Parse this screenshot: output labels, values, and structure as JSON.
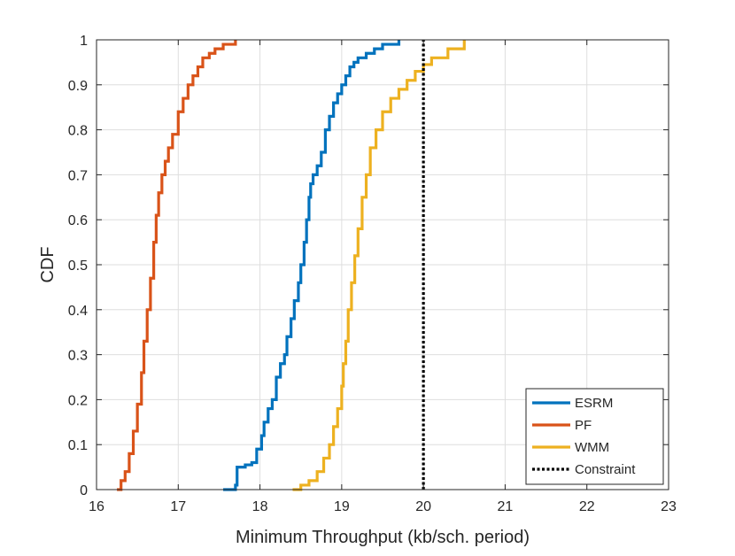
{
  "chart_data": {
    "type": "line",
    "title": "",
    "xlabel": "Minimum Throughput (kb/sch. period)",
    "ylabel": "CDF",
    "xlim": [
      16,
      23
    ],
    "ylim": [
      0,
      1
    ],
    "xticks": [
      16,
      17,
      18,
      19,
      20,
      21,
      22,
      23
    ],
    "yticks": [
      0,
      0.1,
      0.2,
      0.3,
      0.4,
      0.5,
      0.6,
      0.7,
      0.8,
      0.9,
      1
    ],
    "xtick_labels": [
      "16",
      "17",
      "18",
      "19",
      "20",
      "21",
      "22",
      "23"
    ],
    "ytick_labels": [
      "0",
      "0.1",
      "0.2",
      "0.3",
      "0.4",
      "0.5",
      "0.6",
      "0.7",
      "0.8",
      "0.9",
      "1"
    ],
    "grid": true,
    "legend_position": "bottom-right",
    "series": [
      {
        "name": "ESRM",
        "color": "#0072BD",
        "x": [
          17.55,
          17.7,
          17.72,
          17.82,
          17.9,
          17.96,
          18.02,
          18.05,
          18.1,
          18.15,
          18.2,
          18.25,
          18.3,
          18.33,
          18.38,
          18.42,
          18.47,
          18.5,
          18.54,
          18.57,
          18.6,
          18.62,
          18.65,
          18.7,
          18.75,
          18.8,
          18.85,
          18.9,
          18.95,
          19.0,
          19.05,
          19.1,
          19.15,
          19.2,
          19.3,
          19.4,
          19.5,
          19.7
        ],
        "y": [
          0.0,
          0.01,
          0.05,
          0.055,
          0.06,
          0.09,
          0.12,
          0.15,
          0.18,
          0.2,
          0.25,
          0.28,
          0.3,
          0.34,
          0.38,
          0.42,
          0.46,
          0.5,
          0.55,
          0.6,
          0.65,
          0.68,
          0.7,
          0.72,
          0.75,
          0.8,
          0.83,
          0.86,
          0.88,
          0.9,
          0.92,
          0.94,
          0.95,
          0.96,
          0.97,
          0.98,
          0.99,
          1.0
        ]
      },
      {
        "name": "PF",
        "color": "#D95319",
        "x": [
          16.25,
          16.3,
          16.35,
          16.4,
          16.45,
          16.5,
          16.55,
          16.58,
          16.62,
          16.66,
          16.7,
          16.73,
          16.76,
          16.8,
          16.84,
          16.88,
          16.93,
          17.0,
          17.06,
          17.12,
          17.18,
          17.24,
          17.3,
          17.38,
          17.45,
          17.55,
          17.7
        ],
        "y": [
          0.0,
          0.02,
          0.04,
          0.08,
          0.13,
          0.19,
          0.26,
          0.33,
          0.4,
          0.47,
          0.55,
          0.61,
          0.66,
          0.7,
          0.73,
          0.76,
          0.79,
          0.84,
          0.87,
          0.9,
          0.92,
          0.94,
          0.96,
          0.97,
          0.98,
          0.99,
          1.0
        ]
      },
      {
        "name": "WMM",
        "color": "#EDB120",
        "x": [
          18.4,
          18.5,
          18.6,
          18.7,
          18.78,
          18.85,
          18.9,
          18.95,
          19.0,
          19.02,
          19.05,
          19.08,
          19.12,
          19.16,
          19.2,
          19.25,
          19.3,
          19.35,
          19.42,
          19.5,
          19.6,
          19.7,
          19.8,
          19.9,
          20.0,
          20.1,
          20.3,
          20.5
        ],
        "y": [
          0.0,
          0.01,
          0.02,
          0.04,
          0.07,
          0.1,
          0.14,
          0.18,
          0.23,
          0.28,
          0.33,
          0.4,
          0.46,
          0.52,
          0.58,
          0.65,
          0.7,
          0.76,
          0.8,
          0.84,
          0.87,
          0.89,
          0.91,
          0.93,
          0.945,
          0.96,
          0.98,
          1.0
        ]
      },
      {
        "name": "Constraint",
        "color": "#000000",
        "style": "dotted",
        "x": [
          20,
          20
        ],
        "y": [
          0,
          1
        ]
      }
    ]
  }
}
